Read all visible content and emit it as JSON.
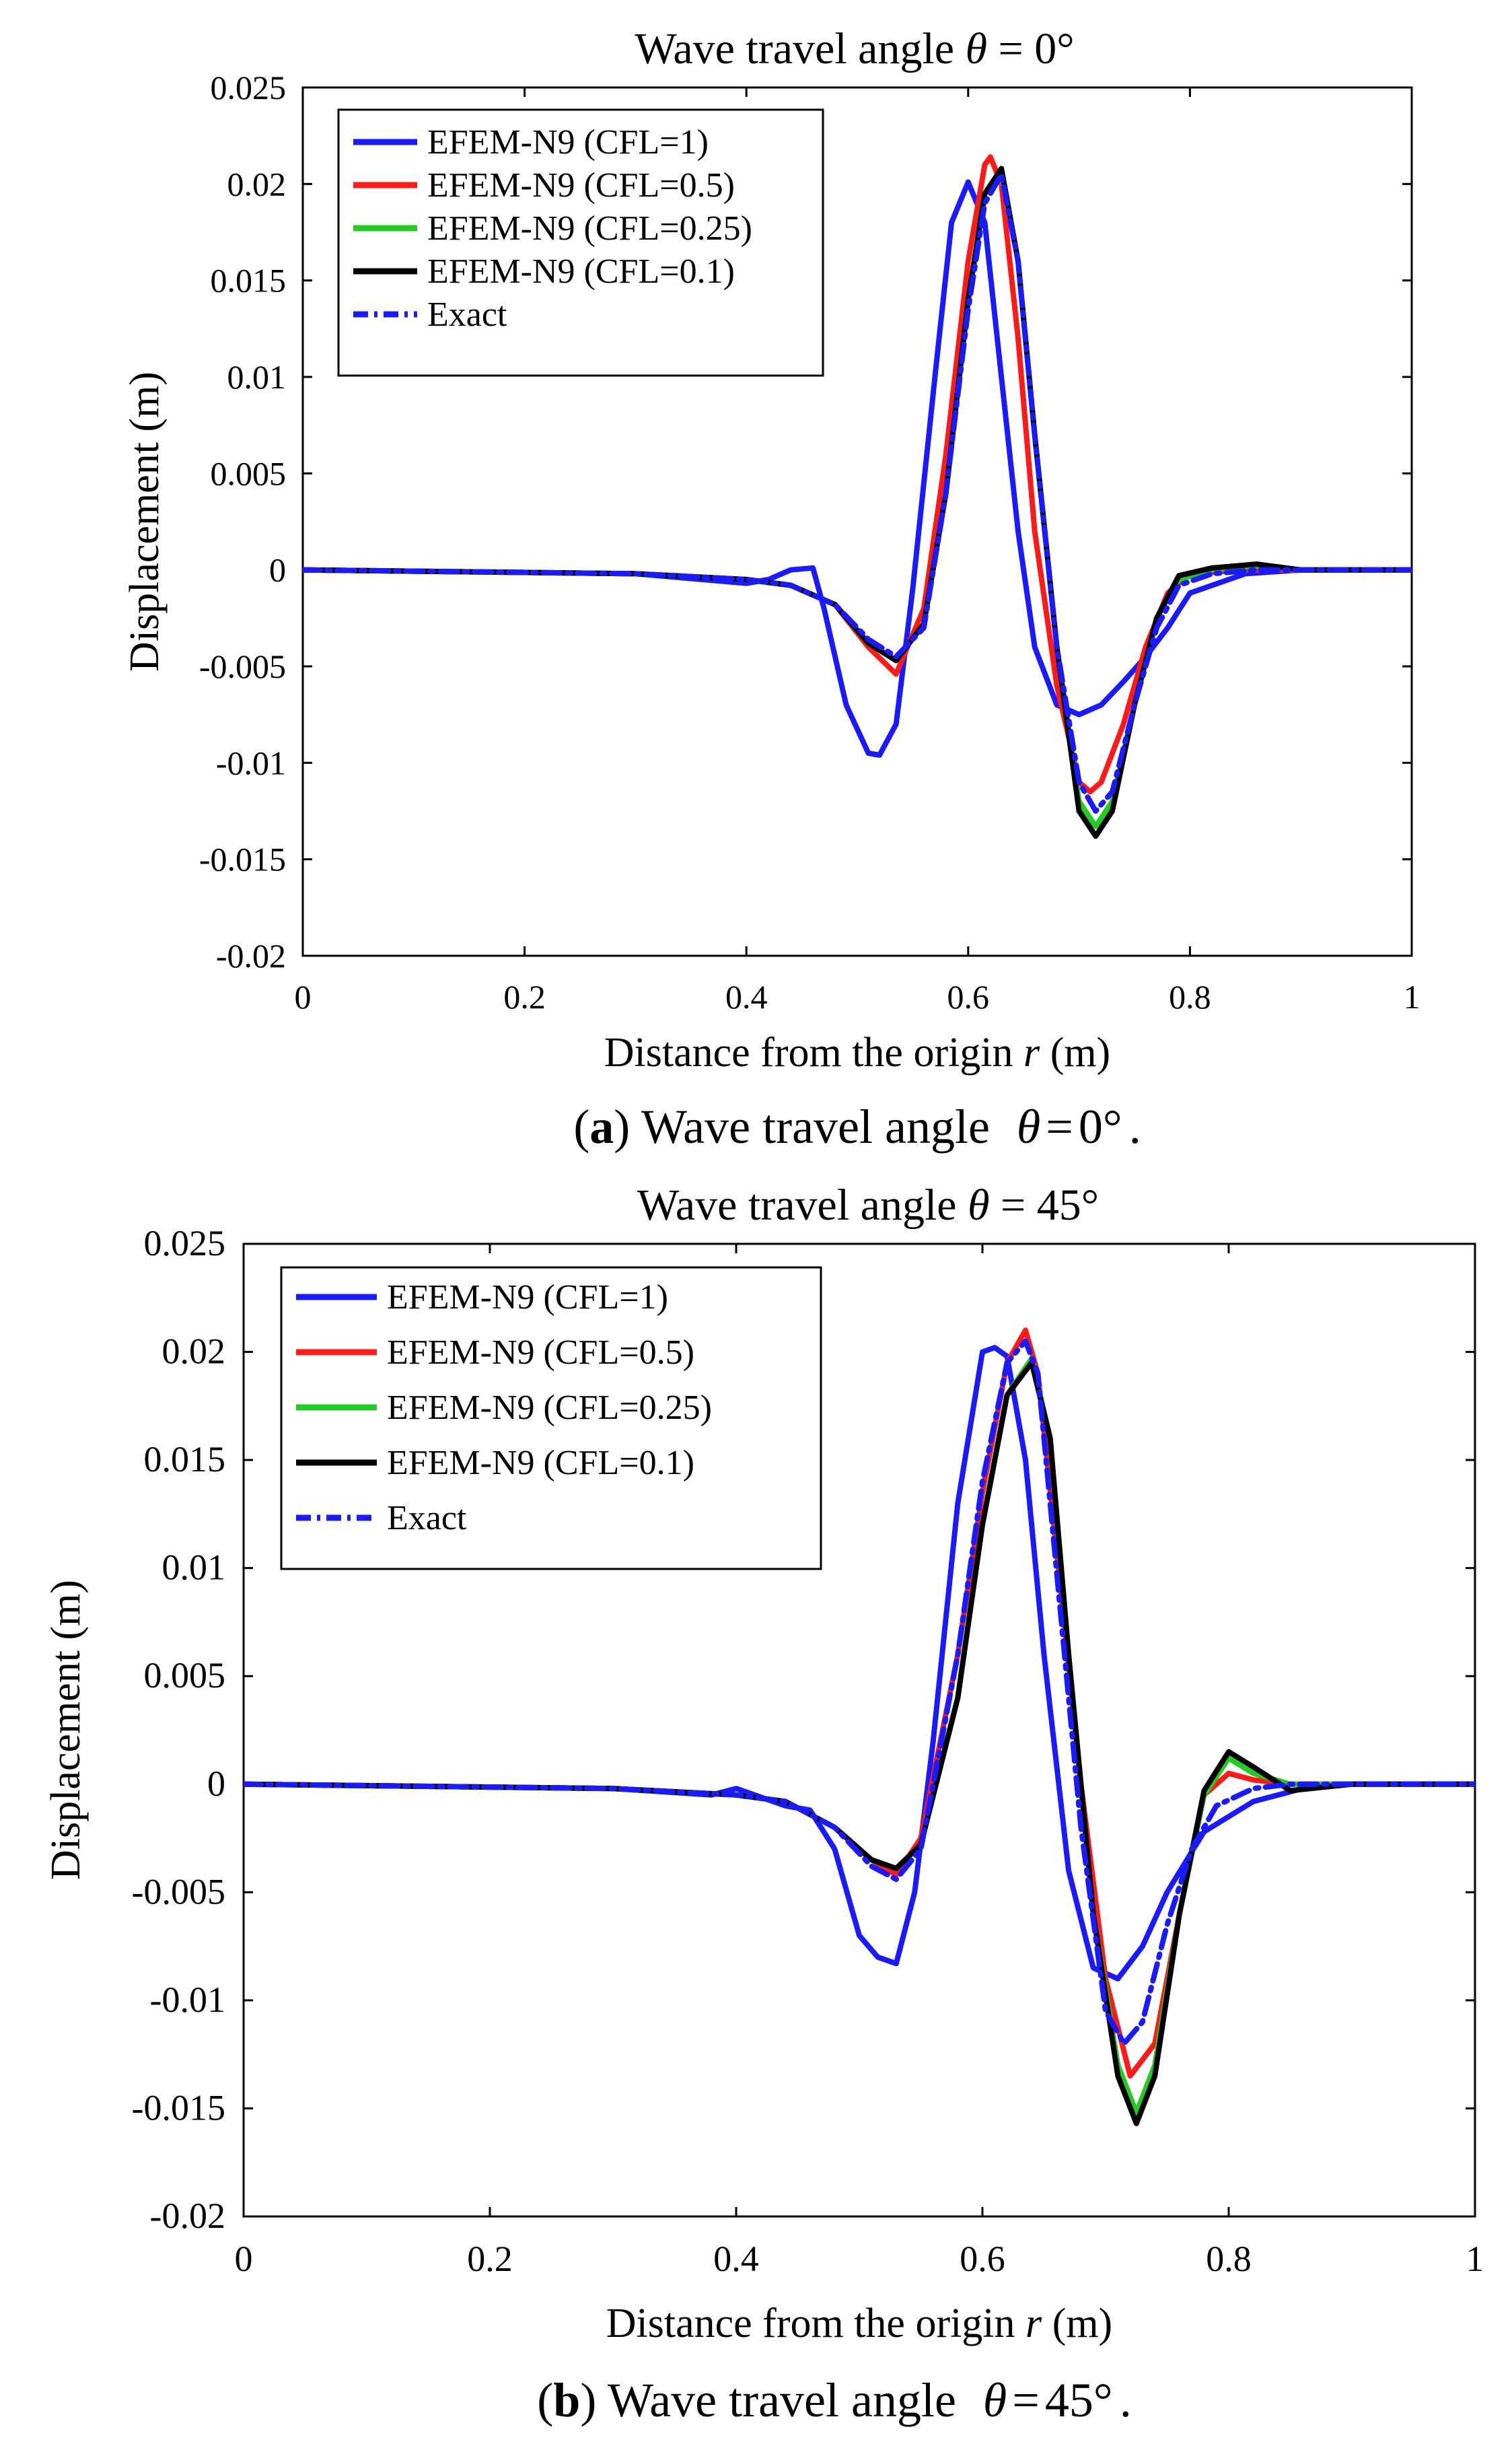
{
  "figure": {
    "caption_a": {
      "label": "a",
      "text": "Wave travel angle",
      "math": "θ = 0°",
      "deg": "0°",
      "end": "."
    },
    "caption_b": {
      "label": "b",
      "text": "Wave travel angle",
      "math": "θ = 45°",
      "deg": "45°",
      "end": "."
    }
  },
  "colors": {
    "cfl1": "#1a1aff",
    "cfl05": "#ff1a1a",
    "cfl025": "#22cc22",
    "cfl01": "#000000",
    "exact": "#1a1aff"
  },
  "chart_data": [
    {
      "id": "a",
      "type": "line",
      "title_text": "Wave travel angle",
      "title_math": "θ = 0°",
      "title_prefix": "Wave travel angle ",
      "title_theta": "θ",
      "title_suffix": " = 0°",
      "xlabel_prefix": "Distance from the origin ",
      "xlabel_var": "r",
      "xlabel_suffix": " (m)",
      "ylabel": "Displacement (m)",
      "xlim": [
        0,
        1
      ],
      "ylim": [
        -0.02,
        0.025
      ],
      "xticks": [
        0,
        0.2,
        0.4,
        0.6,
        0.8,
        1
      ],
      "xtick_labels": [
        "0",
        "0.2",
        "0.4",
        "0.6",
        "0.8",
        "1"
      ],
      "yticks": [
        -0.02,
        -0.015,
        -0.01,
        -0.005,
        0,
        0.005,
        0.01,
        0.015,
        0.02,
        0.025
      ],
      "ytick_labels": [
        "-0.02",
        "-0.015",
        "-0.01",
        "-0.005",
        "0",
        "0.005",
        "0.01",
        "0.015",
        "0.02",
        "0.025"
      ],
      "legend_position": "top-left",
      "series": [
        {
          "name": "EFEM-N9 (CFL=1)",
          "color": "#1a1aff",
          "style": "solid",
          "x": [
            0,
            0.3,
            0.4,
            0.42,
            0.44,
            0.46,
            0.47,
            0.49,
            0.51,
            0.52,
            0.535,
            0.55,
            0.57,
            0.585,
            0.6,
            0.615,
            0.63,
            0.645,
            0.66,
            0.68,
            0.7,
            0.72,
            0.74,
            0.76,
            0.78,
            0.8,
            0.85,
            0.9,
            1
          ],
          "y": [
            0,
            -0.0002,
            -0.0007,
            -0.0005,
            0.0,
            0.0001,
            -0.002,
            -0.007,
            -0.0095,
            -0.0096,
            -0.008,
            -0.001,
            0.01,
            0.018,
            0.0201,
            0.018,
            0.01,
            0.002,
            -0.004,
            -0.007,
            -0.0075,
            -0.007,
            -0.0058,
            -0.0045,
            -0.003,
            -0.0012,
            -0.0002,
            0,
            0
          ]
        },
        {
          "name": "EFEM-N9 (CFL=0.5)",
          "color": "#ff1a1a",
          "style": "solid",
          "x": [
            0,
            0.3,
            0.4,
            0.44,
            0.48,
            0.51,
            0.535,
            0.56,
            0.58,
            0.6,
            0.615,
            0.62,
            0.63,
            0.645,
            0.66,
            0.68,
            0.7,
            0.71,
            0.72,
            0.74,
            0.76,
            0.78,
            0.8,
            0.85,
            0.9,
            1
          ],
          "y": [
            0,
            -0.0002,
            -0.0005,
            -0.0008,
            -0.0018,
            -0.004,
            -0.0054,
            -0.002,
            0.006,
            0.016,
            0.021,
            0.0214,
            0.02,
            0.012,
            0.002,
            -0.006,
            -0.011,
            -0.0115,
            -0.011,
            -0.008,
            -0.004,
            -0.0012,
            -0.0002,
            0,
            0,
            0
          ]
        },
        {
          "name": "EFEM-N9 (CFL=0.25)",
          "color": "#22cc22",
          "style": "solid",
          "x": [
            0,
            0.3,
            0.4,
            0.44,
            0.48,
            0.51,
            0.535,
            0.56,
            0.58,
            0.6,
            0.615,
            0.63,
            0.645,
            0.66,
            0.68,
            0.7,
            0.715,
            0.73,
            0.75,
            0.77,
            0.79,
            0.82,
            0.86,
            0.9,
            1
          ],
          "y": [
            0,
            -0.0002,
            -0.0005,
            -0.0008,
            -0.0018,
            -0.0038,
            -0.0047,
            -0.0028,
            0.004,
            0.014,
            0.0195,
            0.0205,
            0.016,
            0.007,
            -0.004,
            -0.012,
            -0.0133,
            -0.012,
            -0.007,
            -0.0025,
            -0.0005,
            0.0,
            0.0002,
            0,
            0
          ]
        },
        {
          "name": "EFEM-N9 (CFL=0.1)",
          "color": "#000000",
          "style": "solid",
          "x": [
            0,
            0.3,
            0.4,
            0.44,
            0.48,
            0.51,
            0.535,
            0.56,
            0.58,
            0.6,
            0.615,
            0.63,
            0.645,
            0.66,
            0.68,
            0.7,
            0.715,
            0.73,
            0.75,
            0.77,
            0.79,
            0.82,
            0.86,
            0.9,
            1
          ],
          "y": [
            0,
            -0.0002,
            -0.0005,
            -0.0008,
            -0.0018,
            -0.0038,
            -0.0047,
            -0.0028,
            0.004,
            0.014,
            0.0195,
            0.0208,
            0.016,
            0.007,
            -0.004,
            -0.0125,
            -0.0138,
            -0.0125,
            -0.007,
            -0.0025,
            -0.0003,
            0.0001,
            0.0003,
            0,
            0
          ]
        },
        {
          "name": "Exact",
          "color": "#1a1aff",
          "style": "dashdot",
          "x": [
            0,
            0.3,
            0.4,
            0.44,
            0.48,
            0.51,
            0.535,
            0.56,
            0.58,
            0.6,
            0.615,
            0.63,
            0.645,
            0.66,
            0.68,
            0.7,
            0.715,
            0.73,
            0.75,
            0.77,
            0.79,
            0.82,
            0.86,
            0.9,
            1
          ],
          "y": [
            0,
            -0.0002,
            -0.0005,
            -0.0008,
            -0.0018,
            -0.0036,
            -0.0045,
            -0.003,
            0.004,
            0.0135,
            0.019,
            0.0205,
            0.016,
            0.007,
            -0.004,
            -0.011,
            -0.0125,
            -0.0115,
            -0.007,
            -0.003,
            -0.0008,
            -0.0002,
            0,
            0,
            0
          ]
        }
      ]
    },
    {
      "id": "b",
      "type": "line",
      "title_text": "Wave travel angle",
      "title_math": "θ = 45°",
      "title_prefix": "Wave travel angle ",
      "title_theta": "θ",
      "title_suffix": " = 45°",
      "xlabel_prefix": "Distance from the origin ",
      "xlabel_var": "r",
      "xlabel_suffix": " (m)",
      "ylabel": "Displacement (m)",
      "xlim": [
        0,
        1
      ],
      "ylim": [
        -0.02,
        0.025
      ],
      "xticks": [
        0,
        0.2,
        0.4,
        0.6,
        0.8,
        1
      ],
      "xtick_labels": [
        "0",
        "0.2",
        "0.4",
        "0.6",
        "0.8",
        "1"
      ],
      "yticks": [
        -0.02,
        -0.015,
        -0.01,
        -0.005,
        0,
        0.005,
        0.01,
        0.015,
        0.02,
        0.025
      ],
      "ytick_labels": [
        "-0.02",
        "-0.015",
        "-0.01",
        "-0.005",
        "0",
        "0.005",
        "0.01",
        "0.015",
        "0.02",
        "0.025"
      ],
      "legend_position": "top-left",
      "series": [
        {
          "name": "EFEM-N9 (CFL=1)",
          "color": "#1a1aff",
          "style": "solid",
          "x": [
            0,
            0.3,
            0.38,
            0.4,
            0.44,
            0.46,
            0.48,
            0.5,
            0.515,
            0.53,
            0.545,
            0.56,
            0.58,
            0.6,
            0.61,
            0.62,
            0.635,
            0.65,
            0.67,
            0.69,
            0.71,
            0.73,
            0.75,
            0.78,
            0.82,
            0.86,
            0.9,
            1
          ],
          "y": [
            0,
            -0.0002,
            -0.0005,
            -0.0002,
            -0.001,
            -0.0012,
            -0.003,
            -0.007,
            -0.008,
            -0.0083,
            -0.005,
            0.002,
            0.013,
            0.02,
            0.0202,
            0.0198,
            0.015,
            0.006,
            -0.004,
            -0.0085,
            -0.009,
            -0.0075,
            -0.005,
            -0.0022,
            -0.0008,
            -0.0002,
            0,
            0
          ]
        },
        {
          "name": "EFEM-N9 (CFL=0.5)",
          "color": "#ff1a1a",
          "style": "solid",
          "x": [
            0,
            0.3,
            0.4,
            0.44,
            0.48,
            0.51,
            0.53,
            0.55,
            0.58,
            0.6,
            0.62,
            0.635,
            0.645,
            0.66,
            0.68,
            0.7,
            0.72,
            0.74,
            0.76,
            0.78,
            0.8,
            0.82,
            0.85,
            0.9,
            1
          ],
          "y": [
            0,
            -0.0002,
            -0.0005,
            -0.0008,
            -0.002,
            -0.0035,
            -0.0042,
            -0.0025,
            0.006,
            0.0135,
            0.0195,
            0.021,
            0.019,
            0.011,
            0.0,
            -0.009,
            -0.0135,
            -0.012,
            -0.006,
            -0.0005,
            0.0005,
            0.0002,
            0.0,
            0,
            0
          ]
        },
        {
          "name": "EFEM-N9 (CFL=0.25)",
          "color": "#22cc22",
          "style": "solid",
          "x": [
            0,
            0.3,
            0.4,
            0.44,
            0.48,
            0.51,
            0.53,
            0.55,
            0.58,
            0.6,
            0.62,
            0.64,
            0.655,
            0.67,
            0.69,
            0.71,
            0.725,
            0.74,
            0.76,
            0.78,
            0.8,
            0.82,
            0.85,
            0.9,
            1
          ],
          "y": [
            0,
            -0.0002,
            -0.0005,
            -0.0008,
            -0.002,
            -0.0035,
            -0.0039,
            -0.0028,
            0.004,
            0.012,
            0.018,
            0.0197,
            0.016,
            0.006,
            -0.006,
            -0.013,
            -0.0152,
            -0.013,
            -0.006,
            -0.0005,
            0.0012,
            0.0005,
            0.0,
            0,
            0
          ]
        },
        {
          "name": "EFEM-N9 (CFL=0.1)",
          "color": "#000000",
          "style": "solid",
          "x": [
            0,
            0.3,
            0.4,
            0.44,
            0.48,
            0.51,
            0.53,
            0.55,
            0.58,
            0.6,
            0.62,
            0.64,
            0.655,
            0.67,
            0.69,
            0.71,
            0.725,
            0.74,
            0.76,
            0.78,
            0.8,
            0.82,
            0.85,
            0.9,
            1
          ],
          "y": [
            0,
            -0.0002,
            -0.0005,
            -0.0008,
            -0.002,
            -0.0035,
            -0.0039,
            -0.0028,
            0.004,
            0.012,
            0.018,
            0.0195,
            0.016,
            0.006,
            -0.006,
            -0.0135,
            -0.0157,
            -0.0135,
            -0.006,
            -0.0003,
            0.0015,
            0.0008,
            -0.0003,
            0,
            0
          ]
        },
        {
          "name": "Exact",
          "color": "#1a1aff",
          "style": "dashdot",
          "x": [
            0,
            0.3,
            0.4,
            0.44,
            0.48,
            0.51,
            0.53,
            0.55,
            0.58,
            0.6,
            0.62,
            0.635,
            0.645,
            0.66,
            0.68,
            0.7,
            0.715,
            0.73,
            0.75,
            0.77,
            0.79,
            0.82,
            0.85,
            0.9,
            1
          ],
          "y": [
            0,
            -0.0002,
            -0.0005,
            -0.0008,
            -0.002,
            -0.0038,
            -0.0044,
            -0.003,
            0.006,
            0.014,
            0.0195,
            0.0205,
            0.019,
            0.01,
            -0.002,
            -0.0105,
            -0.012,
            -0.011,
            -0.0065,
            -0.003,
            -0.001,
            -0.0002,
            0,
            0,
            0
          ]
        }
      ]
    }
  ]
}
